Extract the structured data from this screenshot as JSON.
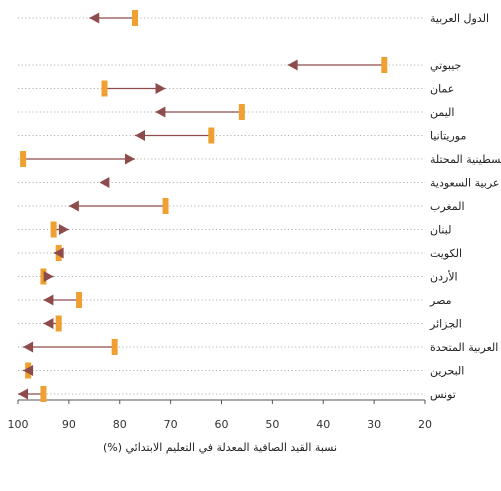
{
  "chart_data": {
    "type": "dot-arrow",
    "xlabel": "نسبة القيد الصافية المعدلة في التعليم الابتدائي (%)",
    "xlim": [
      100,
      20
    ],
    "x_ticks": [
      "100",
      "90",
      "80",
      "70",
      "60",
      "50",
      "40",
      "30",
      "20"
    ],
    "x_direction": "reversed",
    "grid": "dotted horizontal guide per category",
    "series": [
      {
        "marker": "bar"
      },
      {
        "marker": "arrow"
      }
    ],
    "categories": [
      "الدول العربية",
      "",
      "جيبوتي",
      "عمان",
      "اليمن",
      "موريتانيا",
      "فلسطينية المحتلة",
      "عربية السعودية",
      "المغرب",
      "لبنان",
      "الكويت",
      "الأردن",
      "مصر",
      "الجزائر",
      "العربية المتحدة",
      "البحرين",
      "تونس"
    ],
    "start": [
      77,
      null,
      28,
      83,
      56,
      62,
      99,
      null,
      71,
      93,
      92,
      95,
      88,
      92,
      81,
      98,
      95
    ],
    "end": [
      86,
      null,
      47,
      71,
      73,
      77,
      77,
      84,
      90,
      90,
      93,
      93,
      95,
      95,
      99,
      99,
      100
    ]
  },
  "colors": {
    "start_marker": "#F0A031",
    "arrow": "#8E4B4B",
    "guide": "#9a9a9a",
    "axis": "#555555"
  }
}
